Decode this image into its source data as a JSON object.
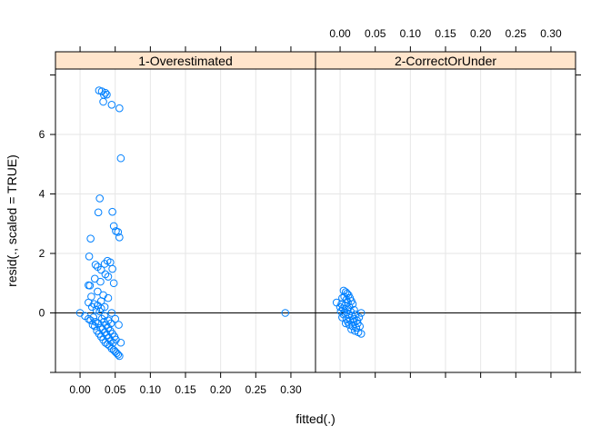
{
  "chart_data": {
    "type": "scatter",
    "xlabel": "fitted(.)",
    "ylabel": "resid(., scaled = TRUE)",
    "xlim": [
      -0.035,
      0.335
    ],
    "ylim": [
      -2.0,
      8.2
    ],
    "x_ticks": [
      "0.00",
      "0.05",
      "0.10",
      "0.15",
      "0.20",
      "0.25",
      "0.30"
    ],
    "x_tick_values": [
      0.0,
      0.05,
      0.1,
      0.15,
      0.2,
      0.25,
      0.3
    ],
    "y_ticks": [
      "0",
      "2",
      "4",
      "6"
    ],
    "y_tick_values": [
      0,
      2,
      4,
      6
    ],
    "grid": true,
    "reference_line_y": 0,
    "colors": {
      "point": "#0080ff",
      "strip": "#ffe5cc",
      "grid": "#e6e6e6",
      "axis": "#000000"
    },
    "panels": [
      {
        "name": "1-Overestimated",
        "points": [
          [
            0.027,
            7.48
          ],
          [
            0.031,
            7.45
          ],
          [
            0.036,
            7.4
          ],
          [
            0.034,
            7.33
          ],
          [
            0.038,
            7.34
          ],
          [
            0.033,
            7.1
          ],
          [
            0.045,
            7.0
          ],
          [
            0.056,
            6.88
          ],
          [
            0.058,
            5.2
          ],
          [
            0.028,
            3.85
          ],
          [
            0.026,
            3.38
          ],
          [
            0.046,
            3.4
          ],
          [
            0.048,
            2.92
          ],
          [
            0.051,
            2.75
          ],
          [
            0.054,
            2.72
          ],
          [
            0.056,
            2.54
          ],
          [
            0.015,
            2.5
          ],
          [
            0.022,
            1.62
          ],
          [
            0.025,
            1.55
          ],
          [
            0.03,
            1.45
          ],
          [
            0.035,
            1.65
          ],
          [
            0.039,
            1.75
          ],
          [
            0.043,
            1.7
          ],
          [
            0.046,
            1.48
          ],
          [
            0.013,
            1.9
          ],
          [
            0.036,
            1.3
          ],
          [
            0.021,
            1.15
          ],
          [
            0.04,
            1.22
          ],
          [
            0.029,
            1.05
          ],
          [
            0.048,
            1.0
          ],
          [
            0.012,
            0.93
          ],
          [
            0.014,
            0.92
          ],
          [
            0.025,
            0.72
          ],
          [
            0.016,
            0.55
          ],
          [
            0.033,
            0.6
          ],
          [
            0.04,
            0.5
          ],
          [
            0.012,
            0.35
          ],
          [
            0.035,
            0.2
          ],
          [
            0.03,
            0.4
          ],
          [
            0.0,
            0.0
          ],
          [
            0.292,
            0.0
          ],
          [
            0.007,
            -0.1
          ],
          [
            0.012,
            -0.2
          ],
          [
            0.015,
            -0.25
          ],
          [
            0.018,
            -0.4
          ],
          [
            0.021,
            -0.45
          ],
          [
            0.024,
            -0.6
          ],
          [
            0.027,
            -0.7
          ],
          [
            0.03,
            -0.8
          ],
          [
            0.033,
            -0.9
          ],
          [
            0.036,
            -1.0
          ],
          [
            0.039,
            -1.05
          ],
          [
            0.042,
            -1.1
          ],
          [
            0.045,
            -1.2
          ],
          [
            0.048,
            -1.25
          ],
          [
            0.05,
            -1.3
          ],
          [
            0.052,
            -1.35
          ],
          [
            0.054,
            -1.4
          ],
          [
            0.056,
            -1.45
          ],
          [
            0.058,
            -1.0
          ],
          [
            0.022,
            -0.3
          ],
          [
            0.026,
            -0.35
          ],
          [
            0.029,
            -0.5
          ],
          [
            0.032,
            -0.55
          ],
          [
            0.035,
            -0.65
          ],
          [
            0.038,
            -0.75
          ],
          [
            0.041,
            -0.85
          ],
          [
            0.044,
            -0.95
          ],
          [
            0.047,
            -1.0
          ],
          [
            0.019,
            -0.15
          ],
          [
            0.023,
            0.1
          ],
          [
            0.028,
            0.05
          ],
          [
            0.031,
            -0.2
          ],
          [
            0.034,
            -0.3
          ],
          [
            0.037,
            -0.4
          ],
          [
            0.04,
            -0.5
          ],
          [
            0.043,
            -0.6
          ],
          [
            0.046,
            -0.7
          ],
          [
            0.049,
            -0.8
          ],
          [
            0.051,
            -0.9
          ],
          [
            0.017,
            0.2
          ],
          [
            0.02,
            0.3
          ],
          [
            0.025,
            0.25
          ],
          [
            0.03,
            0.15
          ],
          [
            0.045,
            0.0
          ],
          [
            0.05,
            -0.2
          ],
          [
            0.055,
            -0.4
          ],
          [
            0.04,
            -0.25
          ],
          [
            0.035,
            -0.1
          ],
          [
            0.044,
            -0.35
          ]
        ]
      },
      {
        "name": "2-CorrectOrUnder",
        "points": [
          [
            0.005,
            0.75
          ],
          [
            0.008,
            0.7
          ],
          [
            0.01,
            0.65
          ],
          [
            0.012,
            0.6
          ],
          [
            0.006,
            0.55
          ],
          [
            0.003,
            0.5
          ],
          [
            0.009,
            0.45
          ],
          [
            0.014,
            0.5
          ],
          [
            0.016,
            0.4
          ],
          [
            0.011,
            0.35
          ],
          [
            -0.005,
            0.35
          ],
          [
            0.002,
            0.3
          ],
          [
            0.007,
            0.25
          ],
          [
            0.013,
            0.2
          ],
          [
            0.018,
            0.3
          ],
          [
            0.004,
            0.15
          ],
          [
            0.01,
            0.1
          ],
          [
            0.015,
            0.05
          ],
          [
            0.02,
            0.1
          ],
          [
            0.001,
            0.05
          ],
          [
            0.006,
            0.0
          ],
          [
            0.012,
            -0.05
          ],
          [
            0.017,
            -0.1
          ],
          [
            0.022,
            -0.05
          ],
          [
            0.03,
            0.0
          ],
          [
            0.003,
            -0.15
          ],
          [
            0.009,
            -0.2
          ],
          [
            0.014,
            -0.25
          ],
          [
            0.019,
            -0.3
          ],
          [
            0.024,
            -0.25
          ],
          [
            0.008,
            -0.35
          ],
          [
            0.013,
            -0.4
          ],
          [
            0.018,
            -0.45
          ],
          [
            0.023,
            -0.5
          ],
          [
            0.028,
            -0.45
          ],
          [
            0.016,
            -0.55
          ],
          [
            0.021,
            -0.6
          ],
          [
            0.026,
            -0.65
          ],
          [
            0.03,
            -0.7
          ],
          [
            0.011,
            -0.3
          ],
          [
            0.025,
            -0.35
          ],
          [
            0.02,
            -0.2
          ],
          [
            0.005,
            -0.05
          ],
          [
            0.0,
            0.2
          ],
          [
            0.027,
            -0.15
          ]
        ]
      }
    ]
  }
}
